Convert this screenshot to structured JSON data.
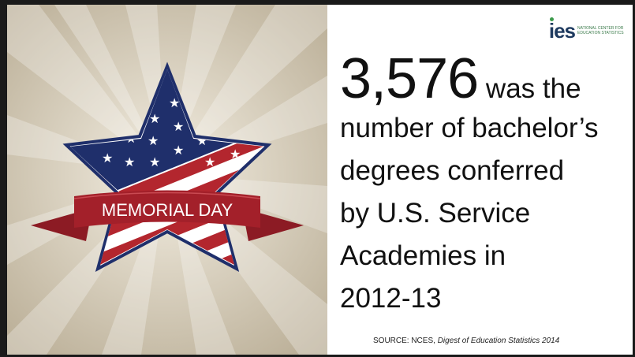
{
  "logo": {
    "mark": "ies",
    "subtitle": "NATIONAL CENTER FOR EDUCATION STATISTICS"
  },
  "banner": {
    "text": "MEMORIAL DAY"
  },
  "fact": {
    "number": "3,576",
    "line1_rest": "was the",
    "line2": "number of bachelor’s",
    "line3": "degrees conferred",
    "line4": "by U.S. Service",
    "line5": "Academies in",
    "line6": "2012-13"
  },
  "source": {
    "prefix": "SOURCE: NCES, ",
    "title": "Digest of Education Statistics 2014"
  },
  "colors": {
    "navy": "#1f2f6b",
    "red": "#b3262e",
    "banner_red": "#a3202a",
    "cream": "#d9d0bc"
  }
}
